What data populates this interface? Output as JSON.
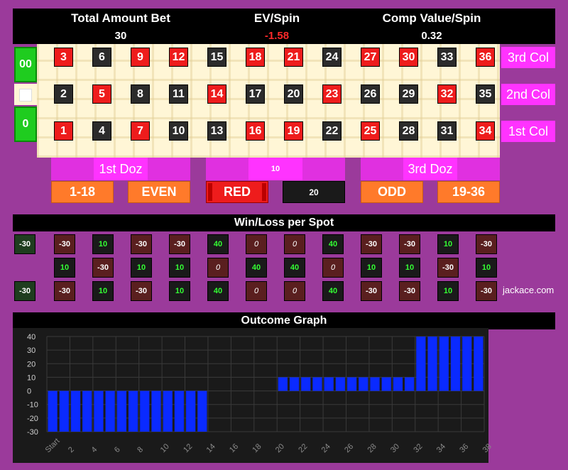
{
  "header": {
    "total_bet_label": "Total Amount Bet",
    "total_bet_value": "30",
    "ev_label": "EV/Spin",
    "ev_value": "-1.58",
    "ev_color": "#ff2a2a",
    "comp_label": "Comp Value/Spin",
    "comp_value": "0.32"
  },
  "board": {
    "zeros": [
      "00",
      "0"
    ],
    "rows": [
      [
        [
          "3",
          "red"
        ],
        [
          "6",
          "black"
        ],
        [
          "9",
          "red"
        ],
        [
          "12",
          "red"
        ],
        [
          "15",
          "black"
        ],
        [
          "18",
          "red"
        ],
        [
          "21",
          "red"
        ],
        [
          "24",
          "black"
        ],
        [
          "27",
          "red"
        ],
        [
          "30",
          "red"
        ],
        [
          "33",
          "black"
        ],
        [
          "36",
          "red"
        ]
      ],
      [
        [
          "2",
          "black"
        ],
        [
          "5",
          "red"
        ],
        [
          "8",
          "black"
        ],
        [
          "11",
          "black"
        ],
        [
          "14",
          "red"
        ],
        [
          "17",
          "black"
        ],
        [
          "20",
          "black"
        ],
        [
          "23",
          "red"
        ],
        [
          "26",
          "black"
        ],
        [
          "29",
          "black"
        ],
        [
          "32",
          "red"
        ],
        [
          "35",
          "black"
        ]
      ],
      [
        [
          "1",
          "red"
        ],
        [
          "4",
          "black"
        ],
        [
          "7",
          "red"
        ],
        [
          "10",
          "black"
        ],
        [
          "13",
          "black"
        ],
        [
          "16",
          "red"
        ],
        [
          "19",
          "red"
        ],
        [
          "22",
          "black"
        ],
        [
          "25",
          "red"
        ],
        [
          "28",
          "black"
        ],
        [
          "31",
          "black"
        ],
        [
          "34",
          "red"
        ]
      ]
    ],
    "columns": [
      "3rd Col",
      "2nd Col",
      "1st Col"
    ],
    "dozens": [
      "1st Doz",
      "10",
      "3rd Doz"
    ],
    "outside": {
      "low": "1-18",
      "even": "EVEN",
      "red": "RED",
      "black_bet": "20",
      "odd": "ODD",
      "high": "19-36"
    }
  },
  "winloss": {
    "title": "Win/Loss per Spot",
    "zeros": [
      "-30",
      "-30"
    ],
    "rows": [
      [
        "-30",
        "10",
        "-30",
        "-30",
        "40",
        "0",
        "0",
        "40",
        "-30",
        "-30",
        "10",
        "-30"
      ],
      [
        "10",
        "-30",
        "10",
        "10",
        "0",
        "40",
        "40",
        "0",
        "10",
        "10",
        "-30",
        "10"
      ],
      [
        "-30",
        "10",
        "-30",
        "10",
        "40",
        "0",
        "0",
        "40",
        "-30",
        "-30",
        "10",
        "-30"
      ]
    ],
    "brand": "jackace.com"
  },
  "chart_data": {
    "type": "bar",
    "title": "Outcome Graph",
    "xlabel": "",
    "ylabel": "",
    "ylim": [
      -30,
      40
    ],
    "yticks": [
      "40",
      "30",
      "20",
      "10",
      "0",
      "-10",
      "-20",
      "-30"
    ],
    "xticks": [
      "Start",
      "2",
      "4",
      "6",
      "8",
      "10",
      "12",
      "14",
      "16",
      "18",
      "20",
      "22",
      "24",
      "26",
      "28",
      "30",
      "32",
      "34",
      "36",
      "38"
    ],
    "values": [
      -30,
      -30,
      -30,
      -30,
      -30,
      -30,
      -30,
      -30,
      -30,
      -30,
      -30,
      -30,
      -30,
      -30,
      0,
      0,
      0,
      0,
      0,
      0,
      10,
      10,
      10,
      10,
      10,
      10,
      10,
      10,
      10,
      10,
      10,
      10,
      40,
      40,
      40,
      40,
      40,
      40
    ],
    "bar_color": "#0a2aff",
    "grid": true
  }
}
